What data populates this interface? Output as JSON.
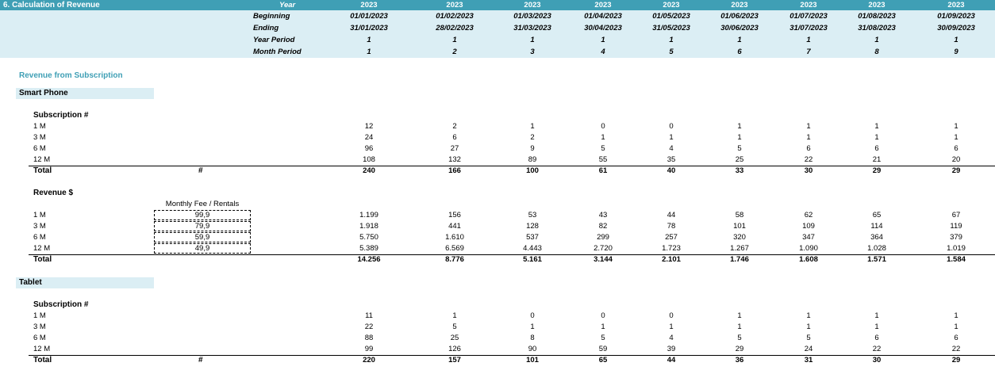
{
  "title": "6.  Calculation of Revenue",
  "header": {
    "year_label": "Year",
    "row_labels": [
      "Beginning",
      "Ending",
      "Year Period",
      "Month Period"
    ],
    "years": [
      "2023",
      "2023",
      "2023",
      "2023",
      "2023",
      "2023",
      "2023",
      "2023",
      "2023"
    ],
    "beginning": [
      "01/01/2023",
      "01/02/2023",
      "01/03/2023",
      "01/04/2023",
      "01/05/2023",
      "01/06/2023",
      "01/07/2023",
      "01/08/2023",
      "01/09/2023"
    ],
    "ending": [
      "31/01/2023",
      "28/02/2023",
      "31/03/2023",
      "30/04/2023",
      "31/05/2023",
      "30/06/2023",
      "31/07/2023",
      "31/08/2023",
      "30/09/2023"
    ],
    "year_period": [
      "1",
      "1",
      "1",
      "1",
      "1",
      "1",
      "1",
      "1",
      "1"
    ],
    "month_period": [
      "1",
      "2",
      "3",
      "4",
      "5",
      "6",
      "7",
      "8",
      "9"
    ]
  },
  "section_title": "Revenue from Subscription",
  "smartphone": {
    "group_label": "Smart Phone",
    "subs_label": "Subscription #",
    "rows": [
      {
        "label": "1 M",
        "values": [
          "12",
          "2",
          "1",
          "0",
          "0",
          "1",
          "1",
          "1",
          "1"
        ]
      },
      {
        "label": "3 M",
        "values": [
          "24",
          "6",
          "2",
          "1",
          "1",
          "1",
          "1",
          "1",
          "1"
        ]
      },
      {
        "label": "6 M",
        "values": [
          "96",
          "27",
          "9",
          "5",
          "4",
          "5",
          "6",
          "6",
          "6"
        ]
      },
      {
        "label": "12 M",
        "values": [
          "108",
          "132",
          "89",
          "55",
          "35",
          "25",
          "22",
          "21",
          "20"
        ]
      }
    ],
    "total": {
      "label": "Total",
      "unit": "#",
      "values": [
        "240",
        "166",
        "100",
        "61",
        "40",
        "33",
        "30",
        "29",
        "29"
      ]
    },
    "revenue_label": "Revenue $",
    "fee_header": "Monthly Fee / Rentals",
    "revenue_rows": [
      {
        "label": "1 M",
        "fee": "99,9",
        "values": [
          "1.199",
          "156",
          "53",
          "43",
          "44",
          "58",
          "62",
          "65",
          "67"
        ]
      },
      {
        "label": "3 M",
        "fee": "79,9",
        "values": [
          "1.918",
          "441",
          "128",
          "82",
          "78",
          "101",
          "109",
          "114",
          "119"
        ]
      },
      {
        "label": "6 M",
        "fee": "59,9",
        "values": [
          "5.750",
          "1.610",
          "537",
          "299",
          "257",
          "320",
          "347",
          "364",
          "379"
        ]
      },
      {
        "label": "12 M",
        "fee": "49,9",
        "values": [
          "5.389",
          "6.569",
          "4.443",
          "2.720",
          "1.723",
          "1.267",
          "1.090",
          "1.028",
          "1.019"
        ]
      }
    ],
    "revenue_total": {
      "label": "Total",
      "values": [
        "14.256",
        "8.776",
        "5.161",
        "3.144",
        "2.101",
        "1.746",
        "1.608",
        "1.571",
        "1.584"
      ]
    }
  },
  "tablet": {
    "group_label": "Tablet",
    "subs_label": "Subscription #",
    "rows": [
      {
        "label": "1 M",
        "values": [
          "11",
          "1",
          "0",
          "0",
          "0",
          "1",
          "1",
          "1",
          "1"
        ]
      },
      {
        "label": "3 M",
        "values": [
          "22",
          "5",
          "1",
          "1",
          "1",
          "1",
          "1",
          "1",
          "1"
        ]
      },
      {
        "label": "6 M",
        "values": [
          "88",
          "25",
          "8",
          "5",
          "4",
          "5",
          "5",
          "6",
          "6"
        ]
      },
      {
        "label": "12 M",
        "values": [
          "99",
          "126",
          "90",
          "59",
          "39",
          "29",
          "24",
          "22",
          "22"
        ]
      }
    ],
    "total": {
      "label": "Total",
      "unit": "#",
      "values": [
        "220",
        "157",
        "101",
        "65",
        "44",
        "36",
        "31",
        "30",
        "29"
      ]
    }
  }
}
